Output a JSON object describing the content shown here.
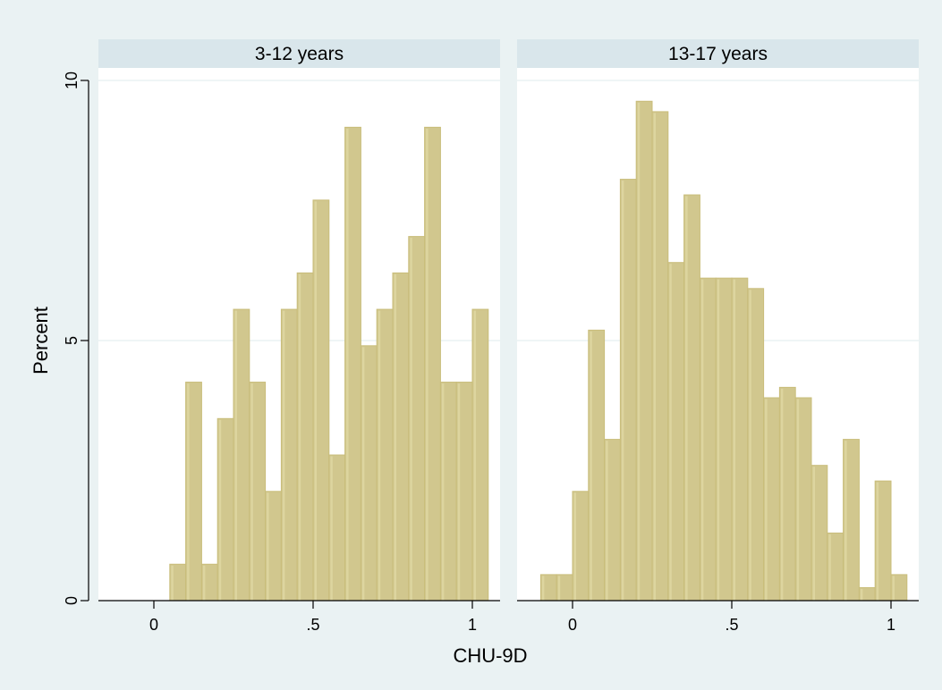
{
  "chart_data": {
    "type": "bar",
    "xlabel": "CHU-9D",
    "ylabel": "Percent",
    "ylim": [
      0,
      10
    ],
    "yticks": [
      0,
      5,
      10
    ],
    "ytick_labels": [
      "0",
      "5",
      "10"
    ],
    "xlim": [
      -0.18,
      1.1
    ],
    "xticks": [
      0,
      0.5,
      1
    ],
    "xtick_labels": [
      "0",
      ".5",
      "1"
    ],
    "bin_width": 0.05,
    "grid": true,
    "bar_color": "#d1c78e",
    "panels": [
      {
        "title": "3-12 years",
        "bin_starts": [
          0.05,
          0.1,
          0.15,
          0.2,
          0.25,
          0.3,
          0.35,
          0.4,
          0.45,
          0.5,
          0.55,
          0.6,
          0.65,
          0.7,
          0.75,
          0.8,
          0.85,
          0.9,
          0.95,
          1.0
        ],
        "values": [
          0.7,
          4.2,
          0.7,
          3.5,
          5.6,
          4.2,
          2.1,
          5.6,
          6.3,
          7.7,
          2.8,
          9.1,
          4.9,
          5.6,
          6.3,
          7.0,
          9.1,
          4.2,
          4.2,
          5.6
        ]
      },
      {
        "title": "13-17 years",
        "bin_starts": [
          -0.1,
          -0.05,
          0.0,
          0.05,
          0.1,
          0.15,
          0.2,
          0.25,
          0.3,
          0.35,
          0.4,
          0.45,
          0.5,
          0.55,
          0.6,
          0.65,
          0.7,
          0.75,
          0.8,
          0.85,
          0.9,
          0.95,
          1.0
        ],
        "values": [
          0.5,
          0.5,
          2.1,
          5.2,
          3.1,
          8.1,
          9.6,
          9.4,
          6.5,
          7.8,
          6.2,
          6.2,
          6.2,
          6.0,
          3.9,
          4.1,
          3.9,
          2.6,
          1.3,
          3.1,
          0.25,
          2.3,
          0.5
        ]
      }
    ]
  }
}
